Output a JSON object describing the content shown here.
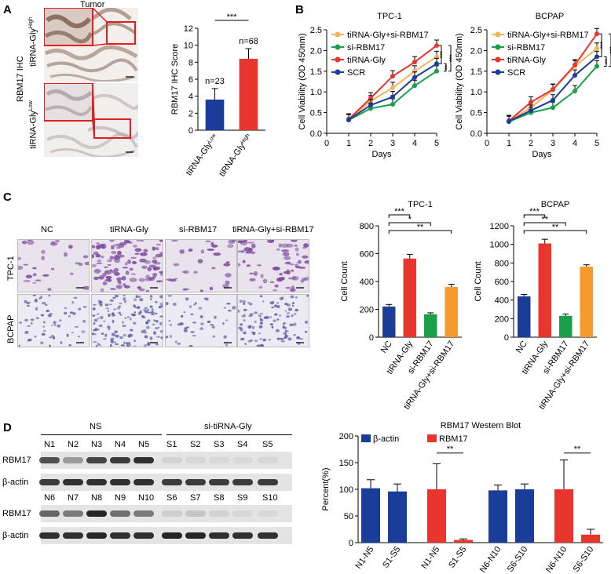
{
  "panels": {
    "A": "A",
    "B": "B",
    "C": "C",
    "D": "D"
  },
  "panelA": {
    "tumor_label": "Tumor",
    "ihc_label": "RBM17 IHC",
    "row_high": "tiRNA-Gly",
    "row_high_sup": "High",
    "row_low": "tiRNA-Gly",
    "row_low_sup": "Low"
  },
  "panelB_left_title": "TPC-1",
  "panelB_right_title": "BCPAP",
  "panelC": {
    "col_labels": [
      "NC",
      "tiRNA-Gly",
      "si-RBM17",
      "tiRNA-Gly+si-RBM17"
    ],
    "row_labels": [
      "TPC-1",
      "BCPAP"
    ]
  },
  "panelD": {
    "group_ns": "NS",
    "group_si": "si-tiRNA-Gly",
    "lanes_top": [
      "N1",
      "N2",
      "N3",
      "N4",
      "N5",
      "S1",
      "S2",
      "S3",
      "S4",
      "S5"
    ],
    "lanes_bottom": [
      "N6",
      "N7",
      "N8",
      "N9",
      "N10",
      "S6",
      "S7",
      "S8",
      "S9",
      "S10"
    ],
    "blot_labels": [
      "RBM17",
      "β-actin",
      "RBM17",
      "β-actin"
    ]
  },
  "colors": {
    "blue": "#1a3d9a",
    "red": "#e8352e",
    "green": "#1aa04a",
    "orange": "#f59b2e",
    "light_orange": "#f5b35a"
  },
  "chart_data": [
    {
      "id": "A-bar",
      "type": "bar",
      "ylabel": "RBM17 IHC Score",
      "ylim": [
        0,
        12
      ],
      "yticks": [
        0,
        2,
        4,
        6,
        8,
        10,
        12
      ],
      "categories": [
        "tiRNA-Gly^Low",
        "tiRNA-Gly^High"
      ],
      "values": [
        3.6,
        8.4
      ],
      "errors": [
        1.3,
        1.2
      ],
      "annotations": [
        "n=23",
        "n=68"
      ],
      "significance": [
        "***"
      ],
      "colors": [
        "#1a3d9a",
        "#e8352e"
      ]
    },
    {
      "id": "B-tpc1",
      "type": "line",
      "title": "TPC-1",
      "xlabel": "Days",
      "ylabel": "Cell Viability (OD 450nm)",
      "xlim": [
        0,
        5
      ],
      "ylim": [
        0,
        2.5
      ],
      "xticks": [
        0,
        1,
        2,
        3,
        4,
        5
      ],
      "yticks": [
        0,
        0.5,
        1.0,
        1.5,
        2.0,
        2.5
      ],
      "x": [
        1,
        2,
        3,
        4,
        5
      ],
      "series": [
        {
          "name": "tiRNA-Gly+si-RBM17",
          "color": "#f5b35a",
          "values": [
            0.33,
            0.78,
            1.1,
            1.5,
            1.85
          ]
        },
        {
          "name": "si-RBM17",
          "color": "#1aa04a",
          "values": [
            0.32,
            0.6,
            0.7,
            1.15,
            1.5
          ]
        },
        {
          "name": "tiRNA-Gly",
          "color": "#e8352e",
          "values": [
            0.34,
            0.85,
            1.38,
            1.72,
            2.12
          ]
        },
        {
          "name": "SCR",
          "color": "#1a3d9a",
          "values": [
            0.33,
            0.68,
            0.88,
            1.35,
            1.68
          ]
        }
      ],
      "significance": [
        "***",
        "**",
        "***"
      ]
    },
    {
      "id": "B-bcpap",
      "type": "line",
      "title": "BCPAP",
      "xlabel": "Days",
      "ylabel": "Cell Viability (OD 450nm)",
      "xlim": [
        0,
        5
      ],
      "ylim": [
        0,
        2.5
      ],
      "xticks": [
        0,
        1,
        2,
        3,
        4,
        5
      ],
      "yticks": [
        0,
        0.5,
        1.0,
        1.5,
        2.0,
        2.5
      ],
      "x": [
        1,
        2,
        3,
        4,
        5
      ],
      "series": [
        {
          "name": "tiRNA-Gly+si-RBM17",
          "color": "#f5b35a",
          "values": [
            0.3,
            0.62,
            1.05,
            1.62,
            2.05
          ]
        },
        {
          "name": "si-RBM17",
          "color": "#1aa04a",
          "values": [
            0.28,
            0.5,
            0.62,
            1.02,
            1.62
          ]
        },
        {
          "name": "tiRNA-Gly",
          "color": "#e8352e",
          "values": [
            0.3,
            0.75,
            1.06,
            1.65,
            2.4
          ]
        },
        {
          "name": "SCR",
          "color": "#1a3d9a",
          "values": [
            0.29,
            0.55,
            0.8,
            1.4,
            1.85
          ]
        }
      ],
      "significance": [
        "***",
        "**",
        "***"
      ]
    },
    {
      "id": "C-tpc1",
      "type": "bar",
      "title": "TPC-1",
      "ylabel": "Cell Count",
      "ylim": [
        0,
        800
      ],
      "yticks": [
        0,
        200,
        400,
        600,
        800
      ],
      "categories": [
        "NC",
        "tiRNA-Gly",
        "si-RBM17",
        "tiRNA-Gly+si-RBM17"
      ],
      "values": [
        220,
        565,
        165,
        360
      ],
      "errors": [
        15,
        30,
        10,
        20
      ],
      "colors": [
        "#1a3d9a",
        "#e8352e",
        "#1aa04a",
        "#f59b2e"
      ],
      "significance": [
        "***",
        "*",
        "**"
      ]
    },
    {
      "id": "C-bcpap",
      "type": "bar",
      "title": "BCPAP",
      "ylabel": "Cell Count",
      "ylim": [
        0,
        1200
      ],
      "yticks": [
        0,
        200,
        400,
        600,
        800,
        1000,
        1200
      ],
      "categories": [
        "NC",
        "tiRNA-Gly",
        "si-RBM17",
        "tiRNA-Gly+si-RBM17"
      ],
      "values": [
        440,
        1010,
        230,
        760
      ],
      "errors": [
        20,
        45,
        20,
        20
      ],
      "colors": [
        "#1a3d9a",
        "#e8352e",
        "#1aa04a",
        "#f59b2e"
      ],
      "significance": [
        "***",
        "**",
        "**"
      ]
    },
    {
      "id": "D-bar",
      "type": "bar",
      "title": "RBM17 Western Blot",
      "ylabel": "Percent(%)",
      "ylim": [
        0,
        200
      ],
      "yticks": [
        0,
        50,
        100,
        150,
        200
      ],
      "categories": [
        "N1-N5",
        "S1-S5",
        "N1-N5",
        "S1-S5",
        "N6-N10",
        "S6-S10",
        "N6-N10",
        "S6-S10"
      ],
      "series": [
        {
          "name": "β-actin",
          "color": "#1a3d9a"
        },
        {
          "name": "RBM17",
          "color": "#e8352e"
        }
      ],
      "values": [
        102,
        96,
        100,
        5,
        98,
        100,
        100,
        15
      ],
      "errors": [
        16,
        14,
        48,
        2,
        10,
        10,
        55,
        10
      ],
      "bar_series": [
        "β-actin",
        "β-actin",
        "RBM17",
        "RBM17",
        "β-actin",
        "β-actin",
        "RBM17",
        "RBM17"
      ],
      "significance": [
        "**",
        "**"
      ]
    }
  ]
}
